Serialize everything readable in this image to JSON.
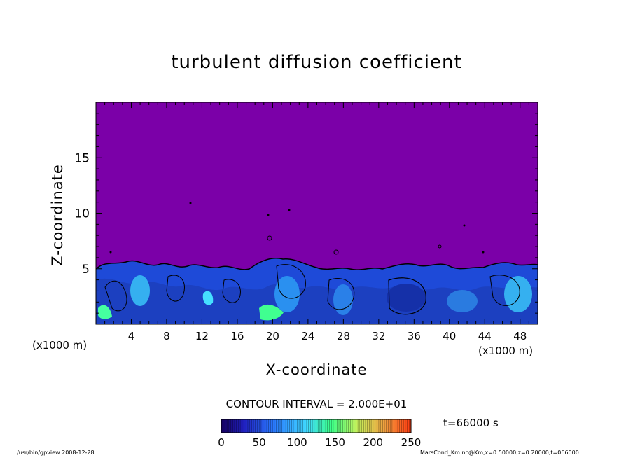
{
  "chart_data": {
    "type": "heatmap",
    "title": "turbulent diffusion coefficient",
    "xlabel": "X-coordinate",
    "ylabel": "Z-coordinate",
    "x_unit_left": "(x1000 m)",
    "x_unit_right": "(x1000 m)",
    "xlim": [
      0,
      50
    ],
    "ylim": [
      0,
      20
    ],
    "x_ticks": [
      "4",
      "8",
      "12",
      "16",
      "20",
      "24",
      "28",
      "32",
      "36",
      "40",
      "44",
      "48"
    ],
    "y_ticks": [
      "5",
      "10",
      "15"
    ],
    "contour_interval": "CONTOUR INTERVAL = 2.000E+01",
    "time": "t=66000 s",
    "colorbar": {
      "min": 0,
      "max": 250,
      "tick_labels": [
        "0",
        "50",
        "100",
        "150",
        "200",
        "250"
      ],
      "colors": [
        "#1a0a80",
        "#1f4cff",
        "#35c8ff",
        "#41ff7a",
        "#d8e84a",
        "#ff4a1a"
      ]
    },
    "background_color": "#7b00a8",
    "turbulent_layer_top_approx": 5.5,
    "grid": false
  },
  "footer": {
    "left": "/usr/bin/gpview   2008-12-28",
    "right": "MarsCond_Km.nc@Km,x=0:50000,z=0:20000,t=066000"
  }
}
